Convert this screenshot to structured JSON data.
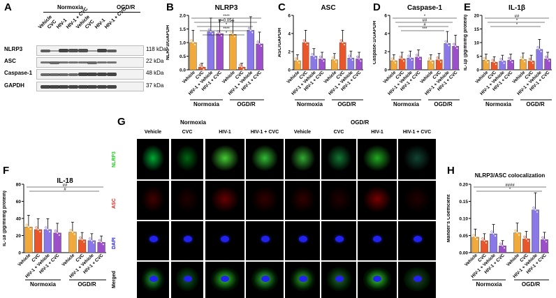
{
  "panels": {
    "A": {
      "letter": "A",
      "group_normoxia": "Normoxia",
      "group_ogdr": "OGD/R",
      "lanes": [
        "Vehicle",
        "CVC",
        "HIV-1",
        "HIV-1 + CVC",
        "Vehicle",
        "CVC",
        "HIV-1",
        "HIV-1 + CVC"
      ],
      "proteins": [
        {
          "name": "NLRP3",
          "kda": "118 kDa"
        },
        {
          "name": "ASC",
          "kda": "22 kDa"
        },
        {
          "name": "Caspase-1",
          "kda": "48 kDa"
        },
        {
          "name": "GAPDH",
          "kda": "37 kDa"
        }
      ]
    },
    "B": {
      "letter": "B",
      "title": "NLRP3",
      "ylabel": "NLRP3/GAPDH",
      "ticks": [
        "0.0",
        "0.5",
        "1.0",
        "1.5",
        "2.0"
      ],
      "annotation": "p=0.054"
    },
    "C": {
      "letter": "C",
      "title": "ASC",
      "ylabel": "ASC/GAPDH",
      "ticks": [
        "0",
        "2",
        "4",
        "6"
      ]
    },
    "D": {
      "letter": "D",
      "title": "Caspase-1",
      "ylabel": "Caspase-1/GAPDH",
      "ticks": [
        "0",
        "2",
        "4",
        "6"
      ]
    },
    "E": {
      "letter": "E",
      "title": "IL-1β",
      "ylabel": "IL-1β (pg/ml/mg protein)",
      "ticks": [
        "0",
        "5",
        "10",
        "15",
        "20"
      ]
    },
    "F": {
      "letter": "F",
      "title": "IL-18",
      "ylabel": "IL-18 (pg/ml/mg protein)",
      "ticks": [
        "0",
        "20",
        "40",
        "60",
        "80"
      ]
    },
    "G": {
      "letter": "G",
      "group_normoxia": "Normoxia",
      "group_ogdr": "OGD/R",
      "columns": [
        "Vehicle",
        "CVC",
        "HIV-1",
        "HIV-1 + CVC",
        "Vehicle",
        "CVC",
        "HIV-1",
        "HIV-1 + CVC"
      ],
      "rows": [
        "NLRP3",
        "ASC",
        "DAPI",
        "Merged"
      ]
    },
    "H": {
      "letter": "H",
      "title": "NLRP3/ASC colocalization",
      "ylabel": "Mander's Coefficient",
      "ticks": [
        "0.00",
        "0.05",
        "0.10",
        "0.15",
        "0.20"
      ]
    },
    "bar_groups": {
      "normoxia": "Normoxia",
      "ogdr": "OGD/R"
    },
    "bar_categories": [
      "Vehicle",
      "CVC",
      "HIV-1 + Vehicle",
      "HIV-1 + CVC"
    ]
  },
  "colors": {
    "vehicle": "#f2a93b",
    "cvc": "#e8562a",
    "hiv": "#8b78e8",
    "hivcvc": "#9b4fc9",
    "nlrp3_label": "#22cc22",
    "asc_label": "#ee2222",
    "dapi_label": "#2222ee"
  },
  "chart_data": [
    {
      "id": "B",
      "type": "bar",
      "title": "NLRP3",
      "ylabel": "NLRP3/GAPDH",
      "ylim": [
        0,
        2.0
      ],
      "categories": [
        "Vehicle",
        "CVC",
        "HIV-1 + Vehicle",
        "HIV-1 + CVC",
        "Vehicle",
        "CVC",
        "HIV-1 + Vehicle",
        "HIV-1 + CVC"
      ],
      "values": [
        1.0,
        0.1,
        1.4,
        1.33,
        1.3,
        0.1,
        1.45,
        0.95
      ],
      "sig": [
        {
          "text": "****"
        },
        {
          "text": "p=0.054"
        },
        {
          "text": "*"
        },
        {
          "text": "****"
        },
        {
          "text": "*"
        }
      ]
    },
    {
      "id": "C",
      "type": "bar",
      "title": "ASC",
      "ylabel": "ASC/GAPDH",
      "ylim": [
        0,
        6
      ],
      "categories": [
        "Vehicle",
        "CVC",
        "HIV-1 + Vehicle",
        "HIV-1 + CVC",
        "Vehicle",
        "CVC",
        "HIV-1 + Vehicle",
        "HIV-1 + CVC"
      ],
      "values": [
        1.0,
        3.0,
        1.5,
        1.2,
        1.1,
        3.0,
        1.3,
        1.2
      ]
    },
    {
      "id": "D",
      "type": "bar",
      "title": "Caspase-1",
      "ylabel": "Caspase-1/GAPDH",
      "ylim": [
        0,
        6
      ],
      "categories": [
        "Vehicle",
        "CVC",
        "HIV-1 + Vehicle",
        "HIV-1 + CVC",
        "Vehicle",
        "CVC",
        "HIV-1 + Vehicle",
        "HIV-1 + CVC"
      ],
      "values": [
        1.0,
        1.2,
        1.3,
        1.4,
        1.0,
        1.1,
        2.9,
        2.6
      ],
      "sig": [
        {
          "text": "*"
        },
        {
          "text": "##"
        },
        {
          "text": "#"
        },
        {
          "text": "***"
        }
      ]
    },
    {
      "id": "E",
      "type": "bar",
      "title": "IL-1β",
      "ylabel": "IL-1β (pg/ml/mg protein)",
      "ylim": [
        0,
        20
      ],
      "categories": [
        "Vehicle",
        "CVC",
        "HIV-1 + Vehicle",
        "HIV-1 + CVC",
        "Vehicle",
        "CVC",
        "HIV-1 + Vehicle",
        "HIV-1 + CVC"
      ],
      "values": [
        3.5,
        2.8,
        3.2,
        3.5,
        3.8,
        3.2,
        7.5,
        4.0
      ],
      "sig": [
        {
          "text": "##"
        },
        {
          "text": "*"
        },
        {
          "text": "*"
        }
      ]
    },
    {
      "id": "F",
      "type": "bar",
      "title": "IL-18",
      "ylabel": "IL-18 (pg/ml/mg protein)",
      "ylim": [
        0,
        80
      ],
      "categories": [
        "Vehicle",
        "CVC",
        "HIV-1 + Vehicle",
        "HIV-1 + CVC",
        "Vehicle",
        "CVC",
        "HIV-1 + Vehicle",
        "HIV-1 + CVC"
      ],
      "values": [
        30,
        27,
        27,
        23,
        24,
        15,
        14,
        12
      ],
      "sig": [
        {
          "text": "##"
        },
        {
          "text": "#"
        }
      ]
    },
    {
      "id": "H",
      "type": "bar",
      "title": "NLRP3/ASC colocalization",
      "ylabel": "Mander's Coefficient",
      "ylim": [
        0,
        0.2
      ],
      "categories": [
        "Vehicle",
        "CVC",
        "HIV-1 + Vehicle",
        "HIV-1 + CVC",
        "Vehicle",
        "CVC",
        "HIV-1 + Vehicle",
        "HIV-1 + CVC"
      ],
      "values": [
        0.045,
        0.035,
        0.055,
        0.02,
        0.058,
        0.04,
        0.125,
        0.038
      ],
      "sig": [
        {
          "text": "####"
        },
        {
          "text": "*"
        }
      ]
    }
  ]
}
